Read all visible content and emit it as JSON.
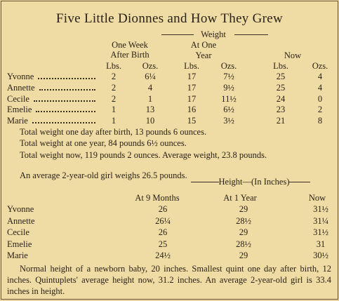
{
  "title": "Five Little Dionnes and How They Grew",
  "weight": {
    "group_label": "Weight",
    "columns": [
      [
        "One Week",
        "After Birth"
      ],
      [
        "At One",
        "Year"
      ],
      [
        "Now"
      ]
    ],
    "units": [
      "Lbs.",
      "Ozs.",
      "Lbs.",
      "Ozs.",
      "Lbs.",
      "Ozs."
    ],
    "rows": [
      [
        "Yvonne",
        "2",
        "6¼",
        "17",
        "7½",
        "25",
        "4"
      ],
      [
        "Annette",
        "2",
        "4",
        "17",
        "9½",
        "25",
        "4"
      ],
      [
        "Cecile",
        "2",
        "1",
        "17",
        "11½",
        "24",
        "0"
      ],
      [
        "Emelie",
        "1",
        "13",
        "16",
        "6½",
        "23",
        "2"
      ],
      [
        "Marie",
        "1",
        "10",
        "15",
        "3½",
        "21",
        "8"
      ]
    ]
  },
  "weight_notes": [
    "Total weight one day after birth, 13 pounds 6 ounces.",
    "Total weight at one year, 84 pounds 6½ ounces.",
    "Total weight now, 119 pounds 2 ounces.  Average weight, 23.8 pounds.",
    "An average 2-year-old girl weighs 26.5 pounds."
  ],
  "height": {
    "group_label": "Height—(In Inches)",
    "columns": [
      "At 9 Months",
      "At 1 Year",
      "Now"
    ],
    "rows": [
      [
        "Yvonne",
        "26",
        "29",
        "31½"
      ],
      [
        "Annette",
        "26¼",
        "28½",
        "31¼"
      ],
      [
        "Cecile",
        "26",
        "29",
        "31½"
      ],
      [
        "Emelie",
        "25",
        "28½",
        "31"
      ],
      [
        "Marie",
        "24½",
        "29",
        "30½"
      ]
    ]
  },
  "height_note": "Normal height of a newborn baby, 20 inches.  Smallest quint one day after birth, 12 inches.  Quintuplets' average height now, 31.2 inches.  An average 2-year-old girl is 33.4 inches in height."
}
